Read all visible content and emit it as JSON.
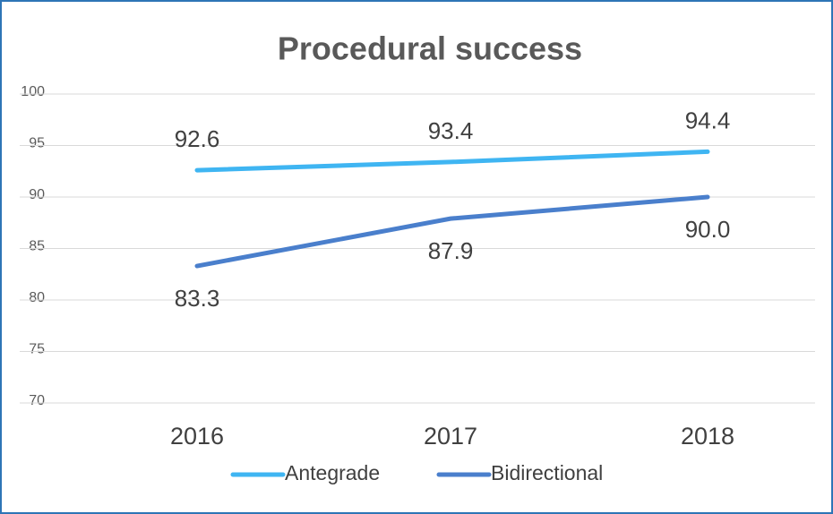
{
  "chart_data": {
    "type": "line",
    "title": "Procedural success",
    "categories": [
      "2016",
      "2017",
      "2018"
    ],
    "series": [
      {
        "name": "Antegrade",
        "color": "#3fb5f2",
        "values": [
          92.6,
          93.4,
          94.4
        ],
        "value_labels": [
          "92.6",
          "93.4",
          "94.4"
        ]
      },
      {
        "name": "Bidirectional",
        "color": "#4a7fcc",
        "values": [
          83.3,
          87.9,
          90.0
        ],
        "value_labels": [
          "83.3",
          "87.9",
          "90.0"
        ]
      }
    ],
    "ylim": [
      70,
      100
    ],
    "yticks": [
      70,
      75,
      80,
      85,
      90,
      95,
      100
    ],
    "grid": true,
    "legend": "bottom"
  }
}
